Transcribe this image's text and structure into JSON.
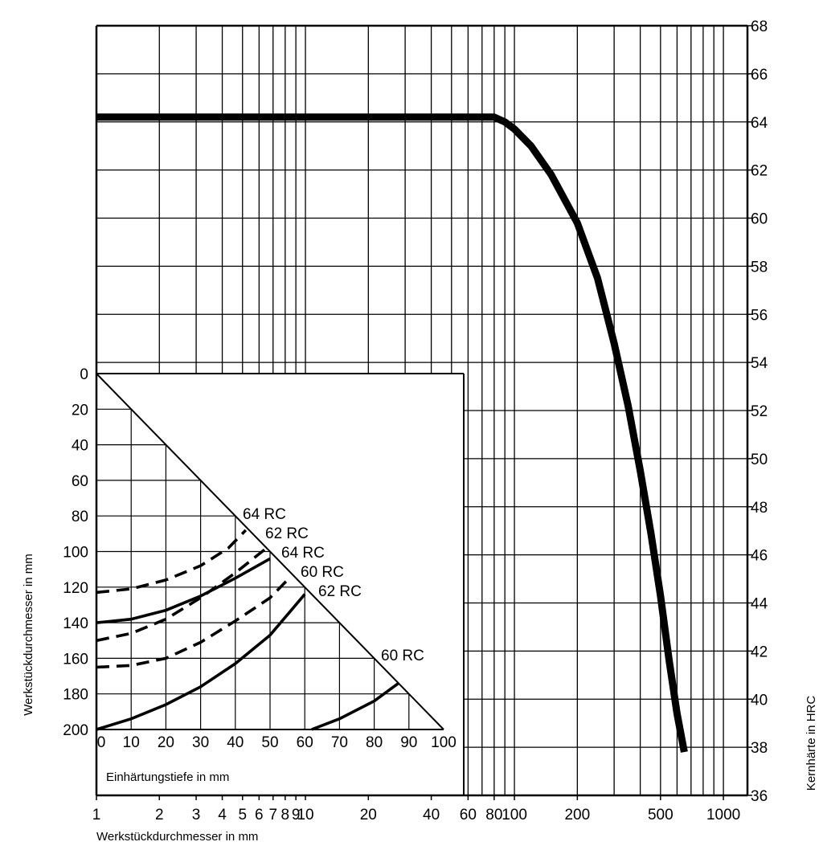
{
  "chart_data": [
    {
      "type": "line",
      "x_axis": {
        "label": "Werkstückdurchmesser in mm",
        "scale": "log",
        "range": [
          1,
          1300
        ],
        "tick_values": [
          1,
          2,
          3,
          4,
          5,
          6,
          7,
          8,
          9,
          10,
          20,
          40,
          60,
          80,
          100,
          200,
          500,
          1000
        ],
        "tick_labels": [
          "1",
          "2",
          "3",
          "4",
          "5",
          "6",
          "7",
          "8",
          "9",
          "10",
          "20",
          "40",
          "60",
          "80",
          "100",
          "200",
          "500",
          "1000"
        ]
      },
      "y_axis": {
        "label": "Kernhärte in HRC",
        "position": "right",
        "range": [
          36,
          68
        ],
        "ticks": [
          "36",
          "38",
          "40",
          "42",
          "44",
          "46",
          "48",
          "50",
          "52",
          "54",
          "56",
          "58",
          "60",
          "62",
          "64",
          "66",
          "68"
        ]
      },
      "grid": true,
      "series": [
        {
          "points": [
            [
              1,
              64.2
            ],
            [
              10,
              64.2
            ],
            [
              50,
              64.2
            ],
            [
              80,
              64.2
            ],
            [
              90,
              64.0
            ],
            [
              100,
              63.7
            ],
            [
              120,
              63.0
            ],
            [
              150,
              61.8
            ],
            [
              200,
              59.8
            ],
            [
              250,
              57.5
            ],
            [
              300,
              54.8
            ],
            [
              350,
              52.2
            ],
            [
              400,
              49.5
            ],
            [
              450,
              46.9
            ],
            [
              500,
              44.3
            ],
            [
              550,
              41.6
            ],
            [
              600,
              39.4
            ],
            [
              650,
              37.8
            ]
          ]
        }
      ]
    },
    {
      "type": "line",
      "x_axis": {
        "label": "Einhärtungstiefe in mm",
        "range": [
          0,
          100
        ],
        "ticks": [
          "0",
          "10",
          "20",
          "30",
          "40",
          "50",
          "60",
          "70",
          "80",
          "90",
          "100"
        ]
      },
      "y_axis": {
        "label": "Werkstückdurchmesser in mm",
        "reversed": true,
        "range": [
          0,
          200
        ],
        "ticks": [
          "0",
          "20",
          "40",
          "60",
          "80",
          "100",
          "120",
          "140",
          "160",
          "180",
          "200"
        ]
      },
      "grid": true,
      "diagonal_limit": [
        [
          0,
          0
        ],
        [
          100,
          200
        ]
      ],
      "series": [
        {
          "label": "64 RC",
          "style": "dashed",
          "points": [
            [
              0,
              123
            ],
            [
              10,
              121
            ],
            [
              20,
              116
            ],
            [
              30,
              108
            ],
            [
              38,
              98
            ],
            [
              43,
              88
            ]
          ]
        },
        {
          "label": "62 RC",
          "style": "dashed",
          "points": [
            [
              0,
              150
            ],
            [
              10,
              146
            ],
            [
              20,
              138
            ],
            [
              30,
              126
            ],
            [
              40,
              112
            ],
            [
              49,
              98
            ]
          ]
        },
        {
          "label": "64 RC",
          "style": "solid",
          "points": [
            [
              0,
              140
            ],
            [
              10,
              138
            ],
            [
              20,
              133
            ],
            [
              30,
              125
            ],
            [
              40,
              115
            ],
            [
              50,
              104
            ]
          ]
        },
        {
          "label": "60 RC",
          "style": "dashed",
          "points": [
            [
              0,
              165
            ],
            [
              10,
              164
            ],
            [
              20,
              160
            ],
            [
              30,
              151
            ],
            [
              40,
              139
            ],
            [
              50,
              126
            ],
            [
              56,
              114
            ]
          ]
        },
        {
          "label": "62 RC",
          "style": "solid",
          "points": [
            [
              0,
              200
            ],
            [
              10,
              194
            ],
            [
              20,
              186
            ],
            [
              30,
              176
            ],
            [
              40,
              163
            ],
            [
              50,
              147
            ],
            [
              60,
              124
            ]
          ]
        },
        {
          "label": "60 RC",
          "style": "solid",
          "points": [
            [
              62,
              200
            ],
            [
              70,
              194
            ],
            [
              80,
              184
            ],
            [
              87,
              174
            ]
          ]
        }
      ]
    }
  ]
}
